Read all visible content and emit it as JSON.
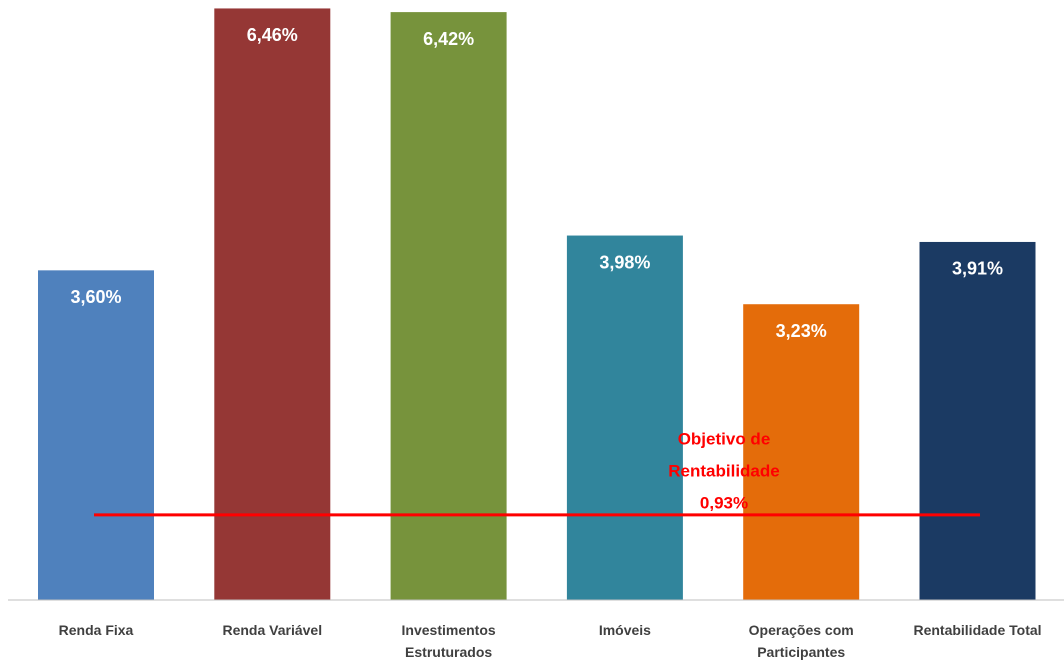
{
  "chart_data": {
    "type": "bar",
    "categories": [
      "Renda Fixa",
      "Renda Variável",
      "Investimentos Estruturados",
      "Imóveis",
      "Operações com Participantes",
      "Rentabilidade Total"
    ],
    "values": [
      3.6,
      6.46,
      6.42,
      3.98,
      3.23,
      3.91
    ],
    "value_labels": [
      "3,60%",
      "6,46%",
      "6,42%",
      "3,98%",
      "3,23%",
      "3,91%"
    ],
    "colors": [
      "#4f81bd",
      "#953735",
      "#77933c",
      "#31859c",
      "#e46c0a",
      "#1b3a63"
    ],
    "ylim": [
      0,
      7
    ],
    "target": {
      "value": 0.93,
      "color": "#ff0000",
      "label_lines": [
        "Objetivo de",
        "Rentabilidade",
        "0,93%"
      ]
    }
  }
}
